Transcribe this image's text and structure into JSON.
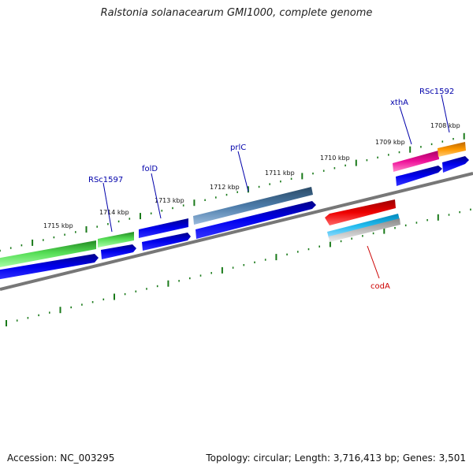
{
  "title": "Ralstonia solanacearum GMI1000, complete genome",
  "footer": {
    "accession": "Accession: NC_003295",
    "stats": "Topology: circular; Length: 3,716,413 bp; Genes: 3,501"
  },
  "ruler_labels": [
    "1715 kbp",
    "1714 kbp",
    "1713 kbp",
    "1712 kbp",
    "1711 kbp",
    "1710 kbp",
    "1709 kbp",
    "1708 kbp"
  ],
  "gene_labels": [
    {
      "text": "RSc1597",
      "color": "#0000aa"
    },
    {
      "text": "folD",
      "color": "#0000aa"
    },
    {
      "text": "prlC",
      "color": "#0000aa"
    },
    {
      "text": "xthA",
      "color": "#0000aa"
    },
    {
      "text": "RSc1592",
      "color": "#0000aa"
    },
    {
      "text": "codA",
      "color": "#cc0000"
    }
  ],
  "colors": {
    "backbone": "#777777",
    "ruler_tick": "#1a7a1a",
    "cds_blue": "#0000ee",
    "green": "#33cc33",
    "steelblue": "#4477aa",
    "magenta": "#ee1199",
    "orange": "#ff9900",
    "red": "#ee0000",
    "cyan": "#22bbee",
    "grey": "#bbbbbb"
  }
}
